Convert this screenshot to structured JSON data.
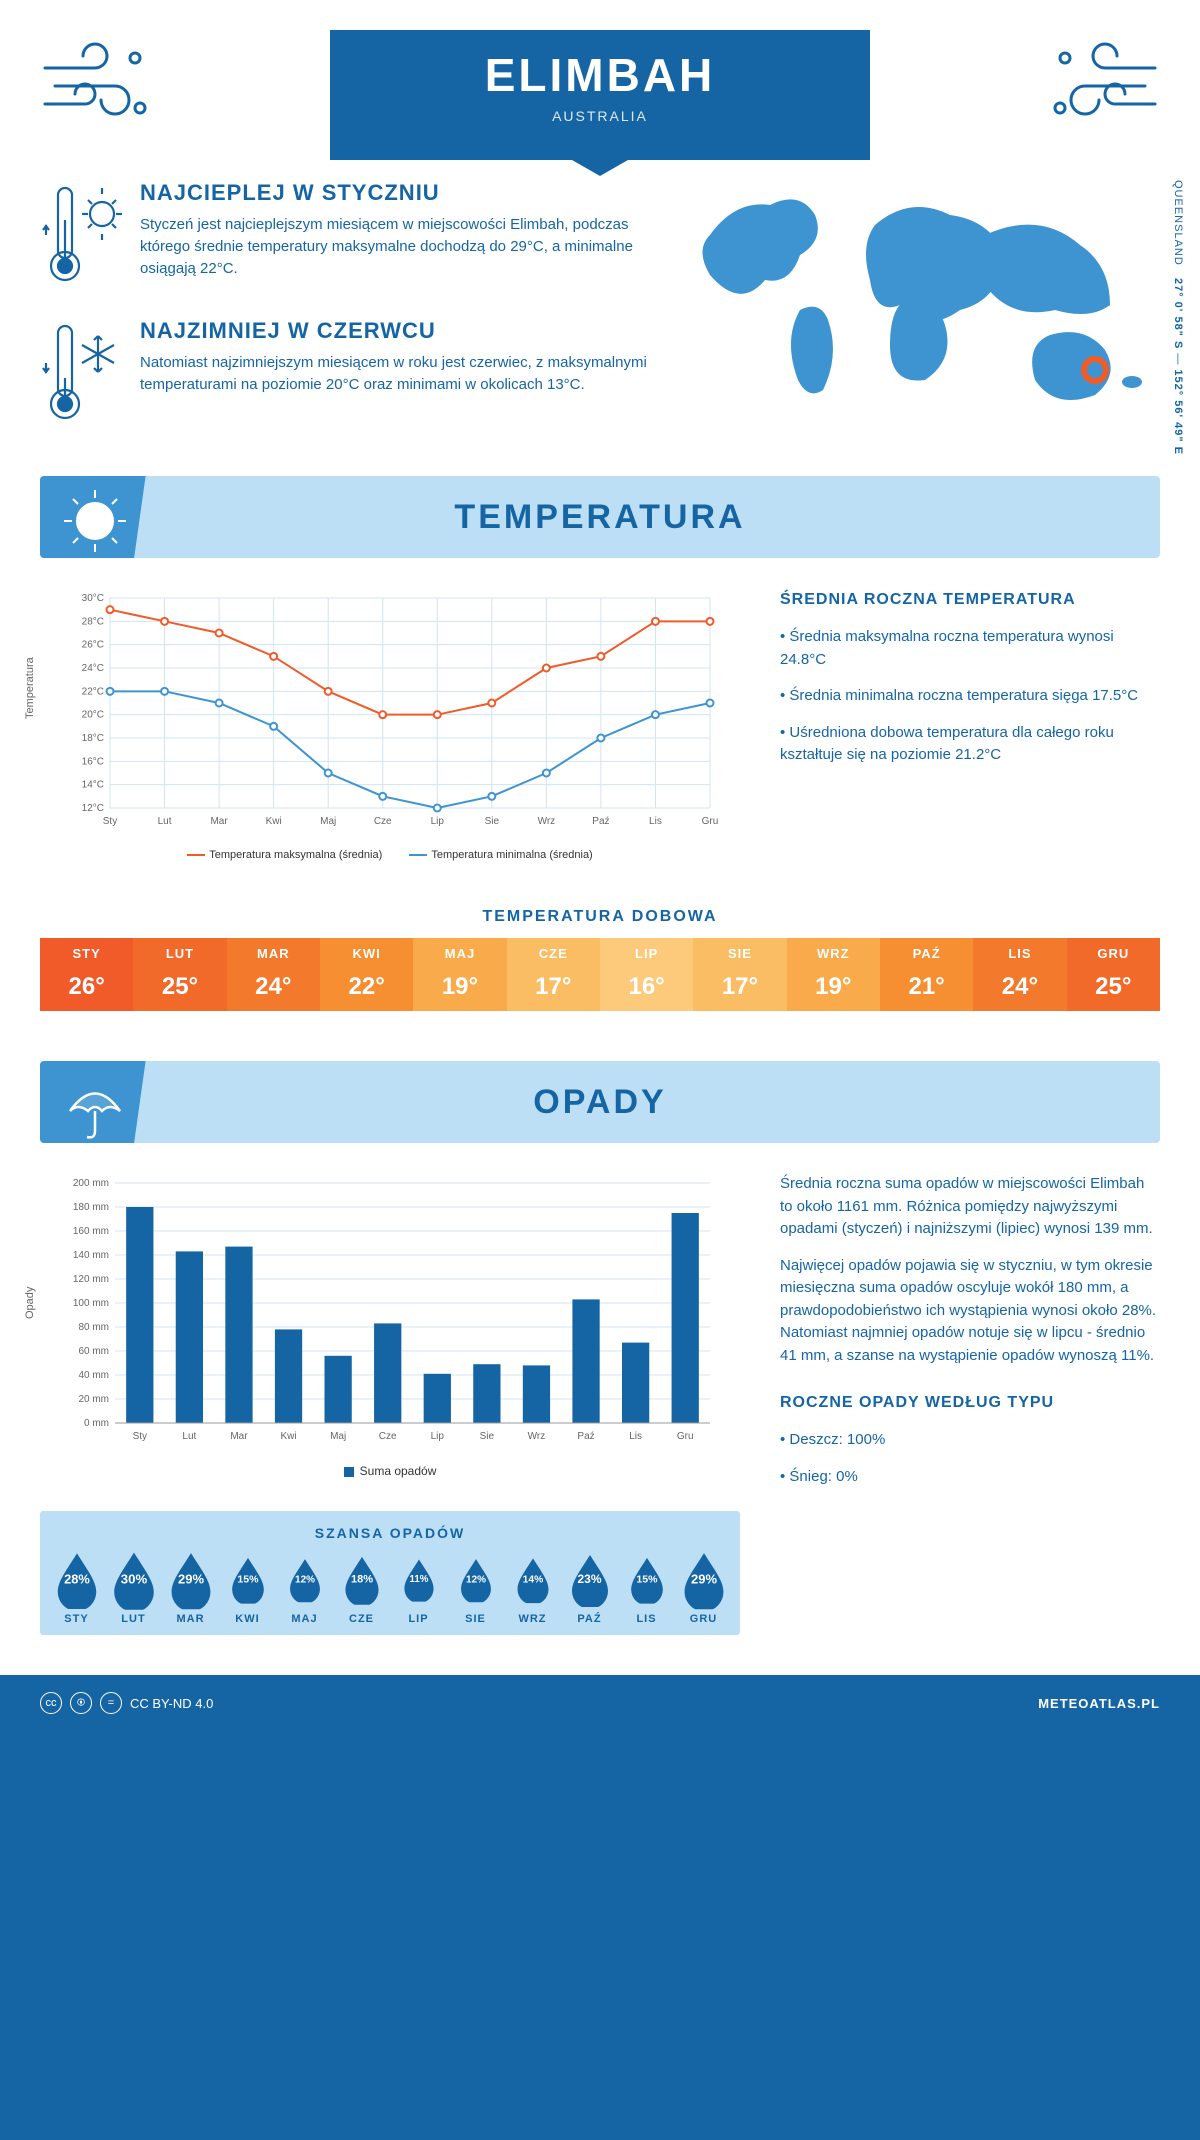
{
  "header": {
    "title": "ELIMBAH",
    "subtitle": "AUSTRALIA"
  },
  "coords": {
    "lat": "27° 0' 58\" S",
    "lon": "152° 56' 49\" E",
    "region": "QUEENSLAND"
  },
  "colors": {
    "brand": "#1565a5",
    "accent": "#3d94d1",
    "lightBlue": "#bcdff6",
    "maxLine": "#f15a29",
    "minLine": "#3d94d1",
    "text": "#1565a5",
    "barFill": "#1565a5",
    "dropFill": "#1565a5"
  },
  "facts": {
    "warm": {
      "heading": "NAJCIEPLEJ W STYCZNIU",
      "text": "Styczeń jest najcieplejszym miesiącem w miejscowości Elimbah, podczas którego średnie temperatury maksymalne dochodzą do 29°C, a minimalne osiągają 22°C."
    },
    "cold": {
      "heading": "NAJZIMNIEJ W CZERWCU",
      "text": "Natomiast najzimniejszym miesiącem w roku jest czerwiec, z maksymalnymi temperaturami na poziomie 20°C oraz minimami w okolicach 13°C."
    }
  },
  "sections": {
    "temperature": "TEMPERATURA",
    "precipitation": "OPADY"
  },
  "months": [
    "Sty",
    "Lut",
    "Mar",
    "Kwi",
    "Maj",
    "Cze",
    "Lip",
    "Sie",
    "Wrz",
    "Paź",
    "Lis",
    "Gru"
  ],
  "temp_chart": {
    "type": "line",
    "ylabel": "Temperatura",
    "ylim": [
      12,
      30
    ],
    "ytick_step": 2,
    "tick_suffix": "°C",
    "grid_color": "#d0e4f2",
    "series": {
      "max": {
        "label": "Temperatura maksymalna (średnia)",
        "color": "#f15a29",
        "values": [
          29,
          28,
          27,
          25,
          22,
          20,
          20,
          21,
          24,
          25,
          28,
          28
        ]
      },
      "min": {
        "label": "Temperatura minimalna (średnia)",
        "color": "#3d94d1",
        "values": [
          22,
          22,
          21,
          19,
          15,
          13,
          12,
          13,
          15,
          18,
          20,
          21
        ]
      }
    }
  },
  "temp_side": {
    "heading": "ŚREDNIA ROCZNA TEMPERATURA",
    "b1": "• Średnia maksymalna roczna temperatura wynosi 24.8°C",
    "b2": "• Średnia minimalna roczna temperatura sięga 17.5°C",
    "b3": "• Uśredniona dobowa temperatura dla całego roku kształtuje się na poziomie 21.2°C"
  },
  "daily_temp": {
    "title": "TEMPERATURA DOBOWA",
    "labels": [
      "STY",
      "LUT",
      "MAR",
      "KWI",
      "MAJ",
      "CZE",
      "LIP",
      "SIE",
      "WRZ",
      "PAŹ",
      "LIS",
      "GRU"
    ],
    "values": [
      "26°",
      "25°",
      "24°",
      "22°",
      "19°",
      "17°",
      "16°",
      "17°",
      "19°",
      "21°",
      "24°",
      "25°"
    ],
    "bg": [
      "#f15a29",
      "#f26a2a",
      "#f37a2c",
      "#f58f32",
      "#f9aa4a",
      "#fbbd63",
      "#fdc97b",
      "#fbbd63",
      "#f9aa4a",
      "#f58f32",
      "#f37a2c",
      "#f26a2a"
    ]
  },
  "precip_chart": {
    "type": "bar",
    "ylabel": "Opady",
    "ylim": [
      0,
      200
    ],
    "ytick_step": 20,
    "tick_suffix": " mm",
    "legend": "Suma opadów",
    "values": [
      180,
      143,
      147,
      78,
      56,
      83,
      41,
      49,
      48,
      103,
      67,
      175
    ],
    "bar_color": "#1565a5",
    "grid_color": "#d0e4f2",
    "bar_width": 0.55
  },
  "precip_side": {
    "p1": "Średnia roczna suma opadów w miejscowości Elimbah to około 1161 mm. Różnica pomiędzy najwyższymi opadami (styczeń) i najniższymi (lipiec) wynosi 139 mm.",
    "p2": "Najwięcej opadów pojawia się w styczniu, w tym okresie miesięczna suma opadów oscyluje wokół 180 mm, a prawdopodobieństwo ich wystąpienia wynosi około 28%. Natomiast najmniej opadów notuje się w lipcu - średnio 41 mm, a szanse na wystąpienie opadów wynoszą 11%.",
    "type_heading": "ROCZNE OPADY WEDŁUG TYPU",
    "rain": "• Deszcz: 100%",
    "snow": "• Śnieg: 0%"
  },
  "chance": {
    "title": "SZANSA OPADÓW",
    "labels": [
      "STY",
      "LUT",
      "MAR",
      "KWI",
      "MAJ",
      "CZE",
      "LIP",
      "SIE",
      "WRZ",
      "PAŹ",
      "LIS",
      "GRU"
    ],
    "values": [
      "28%",
      "30%",
      "29%",
      "15%",
      "12%",
      "18%",
      "11%",
      "12%",
      "14%",
      "23%",
      "15%",
      "29%"
    ],
    "numeric": [
      28,
      30,
      29,
      15,
      12,
      18,
      11,
      12,
      14,
      23,
      15,
      29
    ]
  },
  "footer": {
    "license": "CC BY-ND 4.0",
    "brand": "METEOATLAS.PL"
  }
}
